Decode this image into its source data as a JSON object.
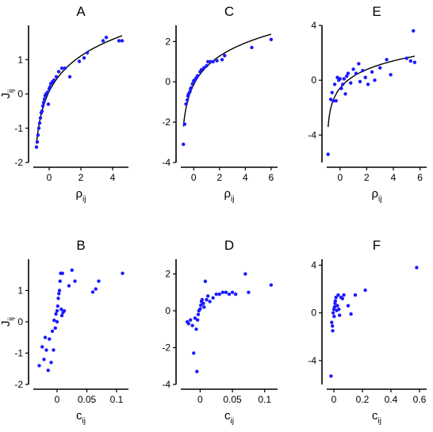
{
  "chart_data": [
    {
      "type": "scatter",
      "title": "A",
      "xlabel": "ρ_ij",
      "ylabel": "J_ij",
      "xlim": [
        -1,
        5
      ],
      "ylim": [
        -2,
        2
      ],
      "xticks": [
        0,
        2,
        4
      ],
      "xtick_labels": [
        "0",
        "2",
        "4"
      ],
      "yticks": [
        -2,
        -1,
        0,
        1
      ],
      "ytick_labels": [
        "-2",
        "-1",
        "0",
        "1"
      ],
      "fit_curve": true,
      "point_color": "#1a1aff",
      "x": [
        -0.8,
        -0.75,
        -0.7,
        -0.65,
        -0.6,
        -0.55,
        -0.5,
        -0.45,
        -0.4,
        -0.35,
        -0.3,
        -0.25,
        -0.2,
        -0.1,
        -0.05,
        0.0,
        0.05,
        0.1,
        0.2,
        0.3,
        0.45,
        0.6,
        0.8,
        1.0,
        1.3,
        1.9,
        2.2,
        2.4,
        3.4,
        3.6,
        4.4,
        4.6
      ],
      "y": [
        -1.55,
        -1.4,
        -1.2,
        -1.0,
        -0.85,
        -0.7,
        -0.55,
        -0.5,
        -0.35,
        -0.25,
        -0.15,
        -0.05,
        0.0,
        0.05,
        -0.3,
        0.15,
        0.2,
        0.3,
        0.35,
        0.4,
        0.5,
        0.65,
        0.75,
        0.75,
        0.5,
        0.95,
        1.05,
        1.2,
        1.55,
        1.65,
        1.55,
        1.55
      ]
    },
    {
      "type": "scatter",
      "title": "B",
      "xlabel": "c_ij",
      "ylabel": "J_ij",
      "xlim": [
        -0.04,
        0.12
      ],
      "ylim": [
        -2,
        2
      ],
      "xticks": [
        0,
        0.05,
        0.1
      ],
      "xtick_labels": [
        "0",
        "0.05",
        "0.1"
      ],
      "yticks": [
        -2,
        -1,
        0,
        1
      ],
      "ytick_labels": [
        "-2",
        "-1",
        "0",
        "1"
      ],
      "fit_curve": false,
      "point_color": "#1a1aff",
      "x": [
        -0.03,
        -0.025,
        -0.022,
        -0.02,
        -0.018,
        -0.015,
        -0.013,
        -0.01,
        -0.008,
        -0.006,
        -0.005,
        -0.003,
        -0.002,
        0.0,
        0.0,
        0.001,
        0.002,
        0.003,
        0.004,
        0.005,
        0.006,
        0.007,
        0.008,
        0.009,
        0.01,
        0.012,
        0.02,
        0.025,
        0.03,
        0.06,
        0.065,
        0.07,
        0.11
      ],
      "y": [
        -1.4,
        -0.8,
        -1.2,
        -0.5,
        -0.9,
        -1.55,
        -0.55,
        -1.3,
        -0.3,
        -0.9,
        0.05,
        -0.2,
        0.25,
        0.0,
        0.35,
        0.5,
        0.75,
        0.9,
        1.0,
        1.3,
        1.55,
        0.4,
        0.2,
        1.55,
        0.3,
        0.35,
        1.15,
        1.65,
        1.3,
        0.95,
        1.05,
        1.3,
        1.55
      ]
    },
    {
      "type": "scatter",
      "title": "C",
      "xlabel": "ρ_ij",
      "ylabel": "",
      "xlim": [
        -1,
        6.5
      ],
      "ylim": [
        -4,
        2.8
      ],
      "xticks": [
        0,
        2,
        4,
        6
      ],
      "xtick_labels": [
        "0",
        "2",
        "4",
        "6"
      ],
      "yticks": [
        -4,
        -2,
        0,
        2
      ],
      "ytick_labels": [
        "-4",
        "-2",
        "0",
        "2"
      ],
      "fit_curve": true,
      "point_color": "#1a1aff",
      "x": [
        -0.8,
        -0.7,
        -0.6,
        -0.5,
        -0.45,
        -0.4,
        -0.3,
        -0.25,
        -0.2,
        -0.1,
        0.0,
        0.1,
        0.2,
        0.3,
        0.5,
        0.6,
        0.8,
        1.0,
        1.1,
        1.3,
        1.5,
        1.8,
        2.2,
        2.4,
        4.5,
        6.0
      ],
      "y": [
        -3.1,
        -2.1,
        -1.1,
        -0.9,
        -0.7,
        -0.6,
        -0.5,
        -0.35,
        -0.3,
        -0.1,
        0.05,
        0.1,
        0.2,
        0.3,
        0.5,
        0.6,
        0.7,
        0.8,
        1.0,
        1.0,
        1.0,
        1.05,
        1.1,
        1.3,
        1.7,
        2.1
      ]
    },
    {
      "type": "scatter",
      "title": "D",
      "xlabel": "c_ij",
      "ylabel": "",
      "xlim": [
        -0.03,
        0.12
      ],
      "ylim": [
        -4,
        2.8
      ],
      "xticks": [
        0,
        0.05,
        0.1
      ],
      "xtick_labels": [
        "0",
        "0.05",
        "0.1"
      ],
      "yticks": [
        -4,
        -2,
        0,
        2
      ],
      "ytick_labels": [
        "-4",
        "-2",
        "0",
        "2"
      ],
      "fit_curve": false,
      "point_color": "#1a1aff",
      "x": [
        -0.02,
        -0.018,
        -0.015,
        -0.012,
        -0.01,
        -0.008,
        -0.006,
        -0.005,
        -0.004,
        -0.003,
        -0.002,
        0.0,
        0.001,
        0.002,
        0.003,
        0.005,
        0.006,
        0.008,
        0.01,
        0.012,
        0.015,
        0.02,
        0.025,
        0.03,
        0.035,
        0.04,
        0.045,
        0.05,
        0.055,
        0.07,
        0.075,
        0.11
      ],
      "y": [
        -0.6,
        -0.7,
        -0.5,
        -0.8,
        -2.3,
        -0.4,
        -1.0,
        -3.3,
        -0.5,
        -0.2,
        0.0,
        0.1,
        0.3,
        0.5,
        0.6,
        0.4,
        0.2,
        1.6,
        0.6,
        0.8,
        0.5,
        0.7,
        0.9,
        0.9,
        1.0,
        1.0,
        0.9,
        1.0,
        0.9,
        2.0,
        1.0,
        1.4
      ]
    },
    {
      "type": "scatter",
      "title": "E",
      "xlabel": "ρ_ij",
      "ylabel": "",
      "xlim": [
        -1,
        6.5
      ],
      "ylim": [
        -6,
        4
      ],
      "xticks": [
        0,
        2,
        4,
        6
      ],
      "xtick_labels": [
        "0",
        "2",
        "4",
        "6"
      ],
      "yticks": [
        -4,
        0,
        4
      ],
      "ytick_labels": [
        "-4",
        "0",
        "4"
      ],
      "fit_curve": true,
      "point_color": "#1a1aff",
      "x": [
        -0.9,
        -0.7,
        -0.6,
        -0.5,
        -0.4,
        -0.3,
        -0.2,
        -0.1,
        0.0,
        0.1,
        0.2,
        0.3,
        0.4,
        0.5,
        0.6,
        0.8,
        1.0,
        1.2,
        1.4,
        1.5,
        1.7,
        1.9,
        2.1,
        2.4,
        2.6,
        3.0,
        3.5,
        3.8,
        5.0,
        5.3,
        5.5,
        5.6
      ],
      "y": [
        -5.4,
        -1.4,
        -0.9,
        -1.5,
        -0.3,
        -1.5,
        0.2,
        0.0,
        0.1,
        -0.6,
        -0.3,
        0.1,
        -1.0,
        0.3,
        0.5,
        -0.2,
        0.8,
        0.5,
        1.2,
        -0.1,
        0.7,
        0.2,
        -0.3,
        0.6,
        0.0,
        0.9,
        1.5,
        0.4,
        1.6,
        1.4,
        3.6,
        1.3
      ]
    },
    {
      "type": "scatter",
      "title": "F",
      "xlabel": "c_ij",
      "ylabel": "",
      "xlim": [
        -0.05,
        0.65
      ],
      "ylim": [
        -6,
        4.5
      ],
      "xticks": [
        0,
        0.2,
        0.4,
        0.6
      ],
      "xtick_labels": [
        "0",
        "0.2",
        "0.4",
        "0.6"
      ],
      "yticks": [
        -4,
        0,
        4
      ],
      "ytick_labels": [
        "-4",
        "0",
        "4"
      ],
      "fit_curve": false,
      "point_color": "#1a1aff",
      "x": [
        -0.02,
        -0.015,
        -0.01,
        -0.008,
        -0.005,
        0.0,
        0.002,
        0.005,
        0.008,
        0.01,
        0.015,
        0.02,
        0.025,
        0.03,
        0.035,
        0.04,
        0.05,
        0.06,
        0.07,
        0.1,
        0.12,
        0.15,
        0.22,
        0.58
      ],
      "y": [
        -5.3,
        -0.8,
        -1.1,
        -1.5,
        0.0,
        0.3,
        -0.3,
        0.5,
        0.8,
        1.0,
        1.3,
        0.2,
        0.6,
        1.5,
        0.3,
        -0.2,
        1.3,
        1.2,
        1.5,
        0.6,
        -0.1,
        1.5,
        1.9,
        3.8
      ]
    }
  ]
}
